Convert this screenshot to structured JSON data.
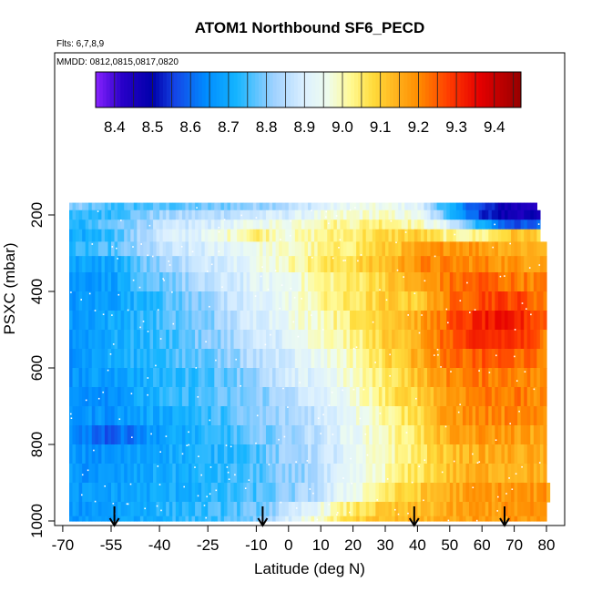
{
  "chart_data": {
    "type": "heatmap",
    "title": "ATOM1 Northbound SF6_PECD",
    "subtitle_flights": "Flts: 6,7,8,9",
    "subtitle_dates": "MMDD: 0812,0815,0817,0820",
    "xlabel": "Latitude (deg N)",
    "ylabel": "PSXC (mbar)",
    "xlim": [
      -70,
      85
    ],
    "ylim": [
      1010,
      130
    ],
    "y_reversed": true,
    "xticks": [
      "-70",
      "-55",
      "-40",
      "-25",
      "-10",
      "0",
      "10",
      "20",
      "30",
      "40",
      "50",
      "60",
      "70",
      "80"
    ],
    "xtick_values": [
      -70,
      -55,
      -40,
      -25,
      -10,
      0,
      10,
      20,
      30,
      40,
      50,
      60,
      70,
      80
    ],
    "yticks": [
      "200",
      "400",
      "600",
      "800",
      "1000"
    ],
    "ytick_values": [
      200,
      400,
      600,
      800,
      1000
    ],
    "colorbar": {
      "min": 8.35,
      "max": 9.47,
      "ticks": [
        "8.4",
        "8.5",
        "8.6",
        "8.7",
        "8.8",
        "8.9",
        "9.0",
        "9.1",
        "9.2",
        "9.3",
        "9.4"
      ],
      "tick_values": [
        8.4,
        8.5,
        8.6,
        8.7,
        8.8,
        8.9,
        9.0,
        9.1,
        9.2,
        9.3,
        9.4
      ]
    },
    "arrows_latitude": [
      -54,
      -8,
      39,
      67
    ],
    "grid": false,
    "pressure_levels": [
      175,
      200,
      225,
      250,
      290,
      325,
      375,
      425,
      475,
      525,
      575,
      625,
      675,
      725,
      775,
      825,
      875,
      925,
      975,
      1000
    ],
    "latitude_knots": [
      -68,
      -55,
      -40,
      -25,
      -10,
      0,
      10,
      20,
      30,
      40,
      50,
      60,
      70,
      80
    ],
    "value_knots": [
      [
        8.8,
        8.75,
        8.76,
        8.78,
        8.82,
        8.85,
        8.9,
        8.95,
        8.95,
        8.92,
        8.7,
        8.55,
        8.45,
        8.45
      ],
      [
        8.72,
        8.75,
        8.82,
        8.85,
        8.88,
        8.9,
        8.95,
        8.98,
        8.98,
        8.95,
        8.75,
        8.55,
        8.45,
        8.5
      ],
      [
        8.7,
        8.78,
        8.85,
        8.9,
        8.95,
        8.97,
        9.02,
        9.02,
        9.05,
        9.0,
        8.9,
        8.7,
        8.55,
        8.6
      ],
      [
        8.68,
        8.75,
        8.88,
        8.93,
        9.05,
        8.98,
        9.02,
        9.05,
        9.08,
        9.1,
        9.02,
        9.02,
        9.12,
        9.1
      ],
      [
        8.72,
        8.76,
        8.85,
        8.9,
        8.96,
        8.98,
        9.02,
        9.05,
        9.1,
        9.15,
        9.2,
        9.18,
        9.15,
        9.15
      ],
      [
        8.68,
        8.7,
        8.82,
        8.88,
        8.95,
        9.0,
        9.05,
        9.08,
        9.12,
        9.2,
        9.2,
        9.2,
        9.18,
        9.18
      ],
      [
        8.66,
        8.68,
        8.78,
        8.85,
        8.92,
        8.95,
        9.02,
        9.05,
        9.1,
        9.15,
        9.22,
        9.25,
        9.22,
        9.2
      ],
      [
        8.66,
        8.68,
        8.75,
        8.82,
        8.9,
        8.95,
        9.02,
        9.05,
        9.1,
        9.1,
        9.22,
        9.28,
        9.28,
        9.22
      ],
      [
        8.66,
        8.7,
        8.75,
        8.8,
        8.9,
        8.95,
        9.0,
        9.05,
        9.12,
        9.15,
        9.25,
        9.32,
        9.32,
        9.25
      ],
      [
        8.66,
        8.7,
        8.74,
        8.8,
        8.87,
        8.92,
        8.98,
        9.02,
        9.1,
        9.15,
        9.25,
        9.3,
        9.3,
        9.22
      ],
      [
        8.66,
        8.7,
        8.74,
        8.78,
        8.85,
        8.9,
        8.95,
        9.0,
        9.08,
        9.15,
        9.22,
        9.25,
        9.25,
        9.2
      ],
      [
        8.66,
        8.68,
        8.72,
        8.76,
        8.82,
        8.88,
        8.92,
        8.98,
        9.05,
        9.12,
        9.2,
        9.22,
        9.22,
        9.18
      ],
      [
        8.66,
        8.66,
        8.72,
        8.76,
        8.8,
        8.85,
        8.9,
        8.96,
        9.05,
        9.1,
        9.18,
        9.22,
        9.22,
        9.18
      ],
      [
        8.66,
        8.66,
        8.7,
        8.74,
        8.8,
        8.83,
        8.88,
        8.95,
        9.02,
        9.08,
        9.18,
        9.2,
        9.2,
        9.18
      ],
      [
        8.66,
        8.58,
        8.68,
        8.72,
        8.78,
        8.82,
        8.87,
        8.94,
        9.0,
        9.06,
        9.15,
        9.18,
        9.18,
        9.15
      ],
      [
        8.66,
        8.65,
        8.7,
        8.72,
        8.76,
        8.82,
        8.86,
        8.92,
        9.0,
        9.05,
        9.12,
        9.15,
        9.15,
        9.15
      ],
      [
        8.66,
        8.66,
        8.7,
        8.72,
        8.76,
        8.8,
        8.85,
        8.92,
        9.0,
        9.06,
        9.12,
        9.15,
        9.15,
        9.15
      ],
      [
        8.66,
        8.68,
        8.7,
        8.72,
        8.76,
        8.8,
        8.86,
        8.96,
        9.05,
        9.1,
        9.15,
        9.18,
        9.18,
        9.18
      ],
      [
        8.66,
        8.68,
        8.72,
        8.74,
        8.78,
        8.85,
        8.95,
        9.05,
        9.1,
        9.12,
        9.15,
        9.18,
        9.18,
        9.18
      ],
      [
        8.66,
        8.68,
        8.72,
        8.75,
        8.8,
        8.9,
        9.0,
        9.08,
        9.12,
        9.14,
        9.16,
        9.18,
        9.18,
        9.18
      ]
    ],
    "row_lat_extent": [
      [
        -68,
        77
      ],
      [
        -68,
        78
      ],
      [
        -68,
        78
      ],
      [
        -68,
        78
      ],
      [
        -68,
        80
      ],
      [
        -68,
        80
      ],
      [
        -68,
        80
      ],
      [
        -68,
        80
      ],
      [
        -68,
        80
      ],
      [
        -68,
        80
      ],
      [
        -68,
        80
      ],
      [
        -68,
        80
      ],
      [
        -68,
        80
      ],
      [
        -68,
        80
      ],
      [
        -68,
        80
      ],
      [
        -68,
        80
      ],
      [
        -68,
        80
      ],
      [
        -68,
        81
      ],
      [
        -68,
        80
      ],
      [
        -68,
        80
      ]
    ]
  }
}
